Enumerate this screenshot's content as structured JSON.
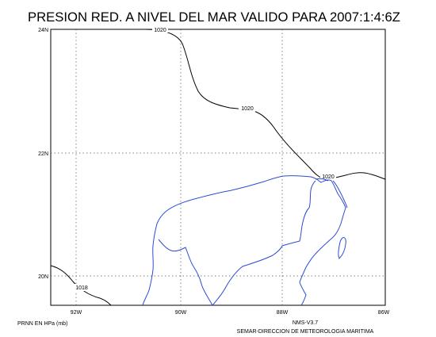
{
  "title": "PRESION RED. A NIVEL DEL MAR VALIDO PARA 2007:1:4:6Z",
  "y_ticks": [
    "24N",
    "22N",
    "20N"
  ],
  "x_ticks": [
    "92W",
    "90W",
    "88W",
    "86W"
  ],
  "contour_labels": [
    "1020",
    "1020",
    "1020",
    "1018"
  ],
  "footer": {
    "left": "PRNN EN HPa (mb)",
    "right_line1": "NMS-V3.7",
    "right_line2": "SEMAR-DIRECCION DE METEOROLOGIA MARITIMA"
  },
  "colors": {
    "coastline": "#2d4bd6",
    "contour": "#000000",
    "grid": "#555555"
  }
}
